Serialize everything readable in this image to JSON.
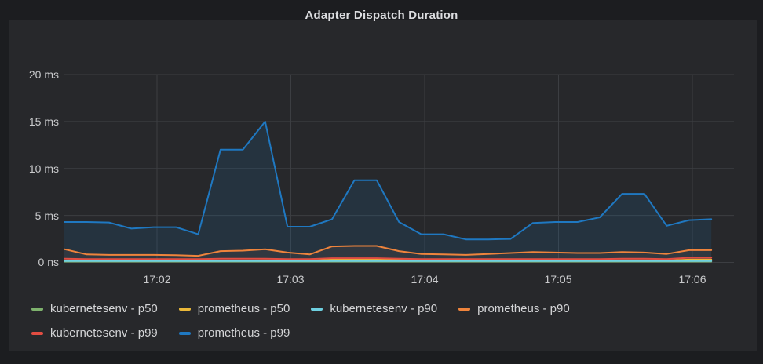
{
  "panel": {
    "title": "Adapter Dispatch Duration"
  },
  "chart_data": {
    "type": "area",
    "title": "Adapter Dispatch Duration",
    "grid": true,
    "legend_position": "bottom",
    "y_unit": "ms",
    "ylim": [
      0,
      20
    ],
    "y_tick_labels": [
      "20 ms",
      "15 ms",
      "10 ms",
      "5 ms",
      "0 ns"
    ],
    "y_tick_values": [
      20,
      15,
      10,
      5,
      0
    ],
    "x_tick_labels": [
      "17:02",
      "17:03",
      "17:04",
      "17:05",
      "17:06"
    ],
    "x_interval_seconds": 10,
    "series": [
      {
        "label": "kubernetesenv - p50",
        "color": "#7EB26D",
        "values": [
          0.08,
          0.08,
          0.08,
          0.08,
          0.08,
          0.08,
          0.08,
          0.08,
          0.08,
          0.08,
          0.08,
          0.08,
          0.08,
          0.08,
          0.08,
          0.08,
          0.08,
          0.08,
          0.08,
          0.08,
          0.08,
          0.08,
          0.08,
          0.08,
          0.08,
          0.08,
          0.08,
          0.08,
          0.08,
          0.08
        ]
      },
      {
        "label": "prometheus - p50",
        "color": "#EAB839",
        "values": [
          0.2,
          0.18,
          0.18,
          0.18,
          0.18,
          0.18,
          0.18,
          0.2,
          0.2,
          0.22,
          0.18,
          0.18,
          0.3,
          0.3,
          0.3,
          0.25,
          0.2,
          0.18,
          0.18,
          0.18,
          0.18,
          0.2,
          0.2,
          0.2,
          0.2,
          0.22,
          0.22,
          0.2,
          0.3,
          0.3
        ]
      },
      {
        "label": "kubernetesenv - p90",
        "color": "#6ED0E0",
        "values": [
          0.15,
          0.15,
          0.15,
          0.15,
          0.15,
          0.15,
          0.15,
          0.15,
          0.15,
          0.15,
          0.15,
          0.15,
          0.15,
          0.15,
          0.15,
          0.15,
          0.15,
          0.15,
          0.15,
          0.15,
          0.15,
          0.15,
          0.15,
          0.15,
          0.15,
          0.15,
          0.15,
          0.15,
          0.15,
          0.15
        ]
      },
      {
        "label": "prometheus - p90",
        "color": "#EF843C",
        "values": [
          1.4,
          0.85,
          0.8,
          0.8,
          0.8,
          0.78,
          0.7,
          1.2,
          1.25,
          1.4,
          1.05,
          0.85,
          1.7,
          1.75,
          1.75,
          1.2,
          0.9,
          0.85,
          0.8,
          0.9,
          1.0,
          1.1,
          1.05,
          1.0,
          1.0,
          1.1,
          1.05,
          0.9,
          1.3,
          1.3
        ]
      },
      {
        "label": "kubernetesenv - p99",
        "color": "#E24D42",
        "values": [
          0.4,
          0.35,
          0.35,
          0.35,
          0.35,
          0.35,
          0.35,
          0.4,
          0.4,
          0.4,
          0.35,
          0.35,
          0.45,
          0.45,
          0.45,
          0.4,
          0.35,
          0.35,
          0.35,
          0.35,
          0.35,
          0.35,
          0.35,
          0.35,
          0.35,
          0.4,
          0.4,
          0.35,
          0.5,
          0.5
        ]
      },
      {
        "label": "prometheus - p99",
        "color": "#1F78C1",
        "values": [
          4.3,
          4.3,
          4.25,
          3.6,
          3.75,
          3.75,
          3.0,
          12.0,
          12.0,
          15.0,
          3.8,
          3.8,
          4.6,
          8.75,
          8.75,
          4.3,
          3.0,
          3.0,
          2.45,
          2.45,
          2.5,
          4.2,
          4.3,
          4.3,
          4.8,
          7.3,
          7.3,
          3.9,
          4.5,
          4.6
        ]
      }
    ]
  }
}
